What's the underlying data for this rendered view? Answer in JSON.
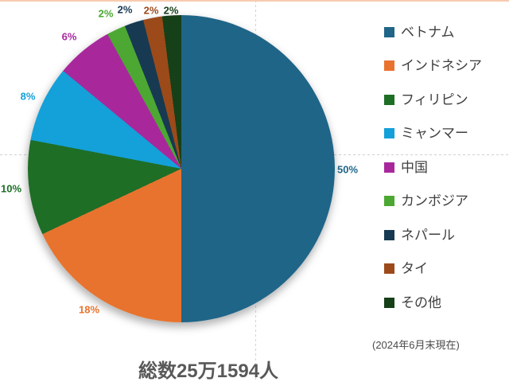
{
  "chart_data": {
    "type": "pie",
    "title": "総数25万1594人",
    "note": "(2024年6月末現在)",
    "legend_position": "right",
    "grid": "dashed quadrant lines on",
    "start_angle_deg": 0,
    "direction": "clockwise",
    "background_color": "#ffffff",
    "top_accent_color": "#f7cbb0",
    "title_color": "#595959",
    "legend_text_color": "#3f3f3f",
    "slices": [
      {
        "label": "ベトナム",
        "value_pct": 50,
        "display": "50%",
        "color": "#1f6588",
        "label_pos": [
          437,
          213
        ]
      },
      {
        "label": "インドネシア",
        "value_pct": 18,
        "display": "18%",
        "color": "#e8732e",
        "label_pos": [
          112,
          389
        ]
      },
      {
        "label": "フィリピン",
        "value_pct": 10,
        "display": "10%",
        "color": "#1e6e26",
        "label_pos": [
          14,
          237
        ]
      },
      {
        "label": "ミャンマー",
        "value_pct": 8,
        "display": "8%",
        "color": "#14a0d8",
        "label_pos": [
          35,
          121
        ]
      },
      {
        "label": "中国",
        "value_pct": 6,
        "display": "6%",
        "color": "#a8289c",
        "label_pos": [
          87,
          46
        ]
      },
      {
        "label": "カンボジア",
        "value_pct": 2,
        "display": "2%",
        "color": "#4ca832",
        "label_pos": [
          133,
          17
        ]
      },
      {
        "label": "ネパール",
        "value_pct": 2,
        "display": "2%",
        "color": "#173a52",
        "label_pos": [
          157,
          12
        ]
      },
      {
        "label": "タイ",
        "value_pct": 2,
        "display": "2%",
        "color": "#9c4a1a",
        "label_pos": [
          190,
          13
        ]
      },
      {
        "label": "その他",
        "value_pct": 2,
        "display": "2%",
        "color": "#164018",
        "label_pos": [
          215,
          13
        ]
      }
    ]
  }
}
